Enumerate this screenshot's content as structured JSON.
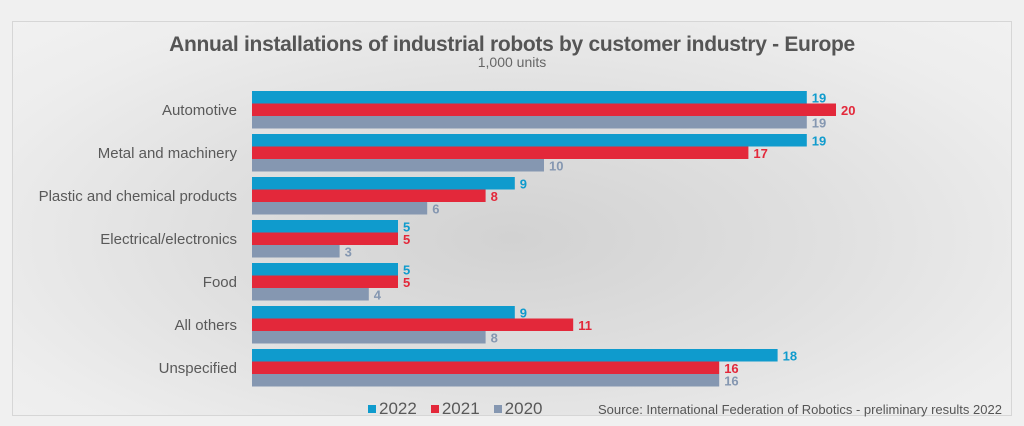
{
  "chart_data": {
    "type": "bar",
    "orientation": "horizontal",
    "title": "Annual installations of industrial robots by customer industry - Europe",
    "subtitle": "1,000 units",
    "xlabel": "",
    "ylabel": "",
    "xlim": [
      0,
      20
    ],
    "grid": false,
    "legend_position": "bottom",
    "categories": [
      "Automotive",
      "Metal and machinery",
      "Plastic and chemical products",
      "Electrical/electronics",
      "Food",
      "All others",
      "Unspecified"
    ],
    "series": [
      {
        "name": "2022",
        "color": "#0f9bcd",
        "values": [
          19,
          19,
          9,
          5,
          5,
          9,
          18
        ]
      },
      {
        "name": "2021",
        "color": "#e3283a",
        "values": [
          20,
          17,
          8,
          5,
          5,
          11,
          16
        ]
      },
      {
        "name": "2020",
        "color": "#8597b1",
        "values": [
          19,
          10,
          6,
          3,
          4,
          8,
          16
        ]
      }
    ],
    "source": "Source: International Federation of Robotics - preliminary results 2022"
  }
}
